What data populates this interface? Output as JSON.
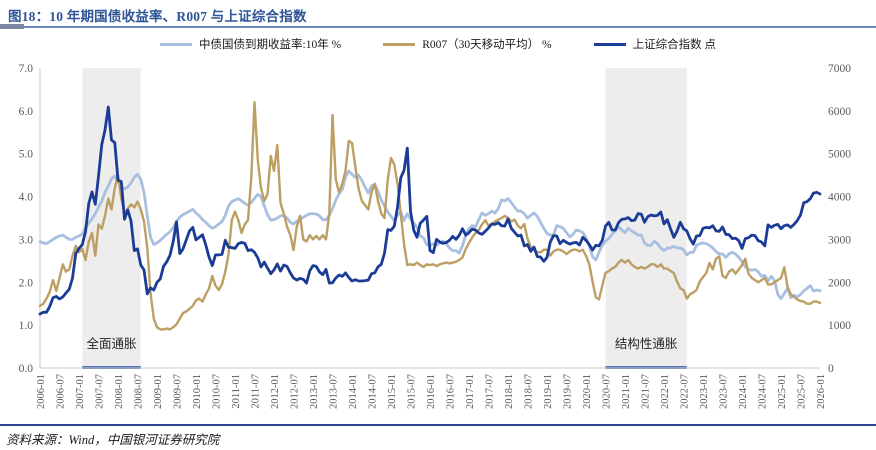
{
  "title": "图18：10 年期国债收益率、R007 与上证综合指数",
  "source": "资料来源：Wind，中国银河证券研究院",
  "colors": {
    "title_blue": "#2F5597",
    "top_rule": "#6E84BC",
    "bottom_rule": "#2B458E",
    "axis_line": "#C9C9C9",
    "axis_text": "#595959",
    "band_fill": "#EDEDED",
    "band_underline": "#5572B8",
    "band_label_text": "#262626"
  },
  "chart_data": {
    "type": "line",
    "title": "10 年期国债收益率、R007 与上证综合指数",
    "x_start": "2006-01",
    "x_frequency": "monthly",
    "x_tick_labels": [
      "2006-01",
      "2006-07",
      "2007-01",
      "2007-07",
      "2008-01",
      "2008-07",
      "2009-01",
      "2009-07",
      "2010-01",
      "2010-07",
      "2011-01",
      "2011-07",
      "2012-01",
      "2012-07",
      "2013-01",
      "2013-07",
      "2014-01",
      "2014-07",
      "2015-01",
      "2015-07",
      "2016-01",
      "2016-07",
      "2017-01",
      "2017-07",
      "2018-01",
      "2018-07",
      "2019-01",
      "2019-07",
      "2020-01",
      "2020-07",
      "2021-01",
      "2021-07",
      "2022-01",
      "2022-07",
      "2023-01",
      "2023-07",
      "2024-01",
      "2024-07",
      "2025-01",
      "2025-07",
      "2026-01"
    ],
    "left_axis": {
      "min": 0,
      "max": 7,
      "step": 1,
      "decimals": 1,
      "tick_labels": [
        "0.0",
        "1.0",
        "2.0",
        "3.0",
        "4.0",
        "5.0",
        "6.0",
        "7.0"
      ]
    },
    "right_axis": {
      "min": 0,
      "max": 7000,
      "step": 1000,
      "tick_labels": [
        "0",
        "1000",
        "2000",
        "3000",
        "4000",
        "5000",
        "6000",
        "7000"
      ]
    },
    "grid": false,
    "legend_position": "top-center",
    "regions": [
      {
        "label": "全面通胀",
        "start": "2007-02",
        "end": "2008-08"
      },
      {
        "label": "结构性通胀",
        "start": "2020-07",
        "end": "2022-08"
      }
    ],
    "series": [
      {
        "name": "中债国债到期收益率:10年 %",
        "axis": "left",
        "color": "#A8BFE0",
        "width": 2.8,
        "values": [
          2.95,
          2.92,
          2.9,
          2.95,
          3.0,
          3.05,
          3.08,
          3.1,
          3.05,
          3.0,
          3.0,
          3.05,
          3.08,
          3.12,
          3.28,
          3.38,
          3.48,
          3.6,
          3.75,
          3.9,
          4.1,
          4.25,
          4.42,
          4.48,
          4.35,
          4.25,
          4.18,
          4.22,
          4.32,
          4.45,
          4.52,
          4.4,
          4.1,
          3.55,
          3.05,
          2.88,
          2.92,
          2.98,
          3.05,
          3.12,
          3.18,
          3.28,
          3.42,
          3.52,
          3.58,
          3.62,
          3.66,
          3.7,
          3.62,
          3.55,
          3.46,
          3.4,
          3.32,
          3.26,
          3.3,
          3.36,
          3.42,
          3.56,
          3.78,
          3.88,
          3.92,
          3.95,
          3.9,
          3.84,
          3.8,
          3.86,
          3.96,
          4.05,
          4.0,
          3.78,
          3.58,
          3.45,
          3.46,
          3.5,
          3.55,
          3.56,
          3.5,
          3.4,
          3.36,
          3.42,
          3.46,
          3.52,
          3.56,
          3.6,
          3.6,
          3.59,
          3.55,
          3.46,
          3.46,
          3.56,
          3.72,
          3.92,
          4.06,
          4.16,
          4.45,
          4.6,
          4.52,
          4.45,
          4.5,
          4.38,
          4.22,
          4.08,
          4.25,
          4.28,
          4.12,
          3.92,
          3.78,
          3.64,
          3.54,
          3.44,
          3.56,
          3.64,
          3.44,
          3.6,
          3.48,
          3.38,
          3.28,
          3.08,
          3.04,
          2.88,
          2.86,
          2.9,
          2.86,
          2.92,
          2.96,
          2.9,
          2.8,
          2.74,
          2.74,
          2.68,
          2.86,
          3.1,
          3.26,
          3.32,
          3.3,
          3.46,
          3.62,
          3.56,
          3.6,
          3.66,
          3.62,
          3.72,
          3.92,
          3.9,
          3.95,
          3.86,
          3.76,
          3.66,
          3.66,
          3.6,
          3.5,
          3.56,
          3.62,
          3.54,
          3.4,
          3.26,
          3.14,
          3.1,
          3.1,
          3.32,
          3.3,
          3.26,
          3.16,
          3.06,
          3.12,
          3.22,
          3.2,
          3.16,
          3.04,
          2.84,
          2.6,
          2.52,
          2.7,
          2.86,
          2.96,
          3.02,
          3.12,
          3.2,
          3.3,
          3.22,
          3.16,
          3.26,
          3.2,
          3.16,
          3.1,
          3.1,
          2.92,
          2.86,
          2.86,
          2.96,
          2.9,
          2.8,
          2.74,
          2.8,
          2.8,
          2.84,
          2.8,
          2.8,
          2.76,
          2.64,
          2.7,
          2.7,
          2.86,
          2.9,
          2.92,
          2.9,
          2.86,
          2.8,
          2.72,
          2.66,
          2.66,
          2.58,
          2.66,
          2.7,
          2.66,
          2.58,
          2.48,
          2.36,
          2.3,
          2.28,
          2.3,
          2.24,
          2.14,
          2.16,
          2.04,
          2.14,
          2.04,
          1.72,
          1.62,
          1.74,
          1.86,
          1.64,
          1.7,
          1.66,
          1.72,
          1.8,
          1.86,
          1.92,
          1.8,
          1.82,
          1.8
        ]
      },
      {
        "name": "R007（30天移动平均） %",
        "axis": "left",
        "color": "#BD9E63",
        "width": 2.4,
        "values": [
          1.45,
          1.5,
          1.62,
          1.78,
          2.05,
          1.8,
          2.1,
          2.42,
          2.25,
          2.3,
          2.62,
          2.85,
          2.7,
          2.78,
          2.52,
          2.95,
          3.15,
          2.62,
          3.35,
          3.25,
          3.55,
          3.95,
          3.7,
          4.2,
          4.5,
          3.95,
          3.62,
          3.72,
          3.82,
          3.75,
          3.88,
          3.7,
          3.42,
          2.8,
          1.75,
          1.15,
          0.95,
          0.9,
          0.9,
          0.92,
          0.9,
          0.95,
          1.02,
          1.15,
          1.28,
          1.32,
          1.38,
          1.45,
          1.58,
          1.62,
          1.55,
          1.72,
          1.85,
          2.15,
          1.92,
          1.82,
          1.95,
          2.25,
          2.65,
          3.45,
          3.65,
          3.45,
          3.15,
          3.35,
          3.45,
          4.45,
          6.2,
          4.85,
          4.2,
          3.9,
          4.05,
          4.95,
          4.6,
          5.2,
          3.85,
          3.6,
          3.3,
          3.1,
          2.75,
          3.3,
          3.55,
          3.0,
          2.95,
          3.1,
          3.0,
          3.08,
          3.0,
          3.1,
          3.0,
          3.6,
          5.9,
          4.4,
          4.1,
          4.3,
          4.6,
          5.3,
          5.25,
          4.7,
          4.2,
          3.9,
          3.8,
          3.7,
          4.1,
          4.3,
          3.9,
          3.6,
          3.5,
          4.4,
          4.9,
          4.75,
          4.3,
          3.6,
          2.9,
          2.4,
          2.42,
          2.4,
          2.46,
          2.4,
          2.36,
          2.42,
          2.4,
          2.42,
          2.38,
          2.42,
          2.44,
          2.46,
          2.44,
          2.46,
          2.48,
          2.52,
          2.58,
          2.78,
          2.92,
          3.05,
          3.15,
          3.22,
          3.35,
          3.45,
          3.32,
          3.36,
          3.42,
          3.46,
          3.5,
          3.55,
          3.5,
          3.42,
          3.46,
          3.32,
          3.26,
          3.36,
          3.02,
          2.82,
          2.76,
          2.7,
          2.7,
          2.76,
          2.76,
          2.62,
          2.72,
          2.76,
          2.76,
          2.72,
          2.66,
          2.72,
          2.76,
          2.76,
          2.72,
          2.76,
          2.62,
          2.42,
          2.02,
          1.65,
          1.6,
          1.92,
          2.22,
          2.26,
          2.32,
          2.36,
          2.46,
          2.52,
          2.46,
          2.52,
          2.42,
          2.36,
          2.32,
          2.36,
          2.32,
          2.36,
          2.42,
          2.42,
          2.36,
          2.42,
          2.32,
          2.32,
          2.26,
          2.22,
          2.02,
          1.86,
          1.82,
          1.62,
          1.72,
          1.76,
          1.82,
          2.02,
          2.12,
          2.22,
          2.45,
          2.3,
          2.55,
          2.6,
          2.15,
          2.1,
          2.25,
          2.3,
          2.2,
          2.3,
          2.4,
          2.55,
          2.2,
          2.1,
          2.05,
          2.0,
          2.05,
          2.1,
          1.95,
          1.95,
          2.0,
          2.05,
          2.1,
          2.35,
          1.9,
          1.72,
          1.66,
          1.6,
          1.56,
          1.55,
          1.5,
          1.5,
          1.55,
          1.55,
          1.52
        ]
      },
      {
        "name": "上证综合指数 点",
        "axis": "right",
        "color": "#1A3C96",
        "width": 2.8,
        "values": [
          1260,
          1300,
          1300,
          1440,
          1640,
          1670,
          1610,
          1660,
          1750,
          1840,
          2100,
          2675,
          2790,
          2880,
          3180,
          3840,
          4110,
          3820,
          4470,
          5220,
          5550,
          6090,
          5320,
          5260,
          4380,
          4350,
          3470,
          3690,
          3430,
          2740,
          2780,
          2400,
          2290,
          1730,
          1870,
          1820,
          2000,
          2080,
          2370,
          2480,
          2630,
          2960,
          3410,
          2670,
          2780,
          2990,
          3200,
          3280,
          2990,
          3050,
          3110,
          2870,
          2590,
          2390,
          2640,
          2640,
          2650,
          2980,
          2820,
          2810,
          2790,
          2900,
          2930,
          2910,
          2740,
          2760,
          2700,
          2570,
          2360,
          2470,
          2330,
          2200,
          2290,
          2430,
          2260,
          2400,
          2370,
          2220,
          2100,
          2050,
          2090,
          2070,
          1980,
          2270,
          2390,
          2370,
          2240,
          2180,
          2300,
          1980,
          1990,
          2100,
          2170,
          2140,
          2220,
          2110,
          2030,
          2060,
          2030,
          2030,
          2040,
          2050,
          2200,
          2220,
          2360,
          2420,
          2680,
          3230,
          3210,
          3310,
          3750,
          4440,
          4610,
          5130,
          3660,
          3210,
          3050,
          3380,
          3450,
          3540,
          2740,
          2690,
          3000,
          2940,
          2910,
          2930,
          2980,
          3070,
          3000,
          3100,
          3250,
          3100,
          3160,
          3240,
          3220,
          3150,
          3120,
          3190,
          3270,
          3360,
          3350,
          3390,
          3320,
          3310,
          3480,
          3260,
          3170,
          3080,
          3100,
          2850,
          2880,
          2720,
          2820,
          2600,
          2590,
          2490,
          2580,
          2940,
          3090,
          3080,
          2900,
          2980,
          2930,
          2890,
          2920,
          2930,
          2870,
          3050,
          2980,
          2880,
          2750,
          2860,
          2850,
          2980,
          3310,
          3400,
          3220,
          3220,
          3390,
          3470,
          3480,
          3510,
          3440,
          3450,
          3600,
          3590,
          3400,
          3530,
          3570,
          3550,
          3560,
          3640,
          3360,
          3460,
          3250,
          3050,
          3190,
          3400,
          3250,
          3200,
          3020,
          2890,
          3080,
          3090,
          3260,
          3280,
          3270,
          3320,
          3200,
          3190,
          3290,
          3120,
          3110,
          3020,
          3030,
          2970,
          2790,
          3020,
          3040,
          3100,
          3090,
          2970,
          2940,
          2850,
          3340,
          3280,
          3330,
          3350,
          3250,
          3320,
          3340,
          3280,
          3350,
          3440,
          3570,
          3860,
          3880,
          3950,
          4080,
          4100,
          4060
        ]
      }
    ]
  }
}
